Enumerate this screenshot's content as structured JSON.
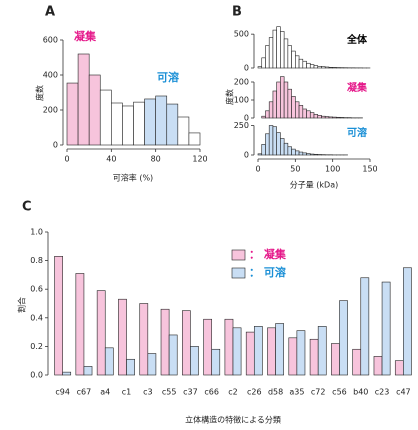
{
  "chart_data": [
    {
      "type": "histogram",
      "panel": "A",
      "xlabel": "可溶率 (%)",
      "ylabel": "度数",
      "bins": [
        0,
        10,
        20,
        30,
        40,
        50,
        60,
        70,
        80,
        90,
        100,
        110,
        120
      ],
      "values": [
        354,
        520,
        400,
        314,
        240,
        223,
        245,
        263,
        280,
        234,
        160,
        69
      ],
      "colors": [
        "#f7c4dc",
        "#f7c4dc",
        "#f7c4dc",
        "#ffffff",
        "#ffffff",
        "#ffffff",
        "#ffffff",
        "#c9def4",
        "#c9def4",
        "#c9def4",
        "#ffffff",
        "#ffffff"
      ],
      "xlim": [
        0,
        120
      ],
      "xticks": [
        0,
        40,
        80,
        120
      ],
      "ylim": [
        0,
        600
      ],
      "yticks": [
        0,
        200,
        400,
        600
      ],
      "annotations": [
        {
          "text": "凝集",
          "color": "#e5198a"
        },
        {
          "text": "可溶",
          "color": "#1a8fd6"
        }
      ]
    },
    {
      "type": "histogram",
      "panel": "B",
      "title": "全体",
      "title_color": "#000000",
      "color": "#ffffff",
      "bins": [
        0,
        5,
        10,
        15,
        20,
        25,
        30,
        35,
        40,
        45,
        50,
        55,
        60,
        65,
        70,
        75,
        80,
        85,
        90,
        95,
        100,
        105,
        110,
        115,
        120,
        125,
        130,
        135,
        140,
        145,
        150
      ],
      "values": [
        20,
        150,
        330,
        450,
        560,
        610,
        540,
        430,
        330,
        250,
        180,
        130,
        100,
        70,
        50,
        35,
        25,
        20,
        15,
        10,
        8,
        6,
        5,
        4,
        3,
        3,
        2,
        2,
        1,
        1
      ],
      "xlim": [
        0,
        150
      ],
      "ylim": [
        0,
        650
      ],
      "yticks": [
        0,
        500
      ]
    },
    {
      "type": "histogram",
      "title": "凝集",
      "title_color": "#e5198a",
      "color": "#f7c4dc",
      "ylabel": "度数",
      "bins": [
        0,
        5,
        10,
        15,
        20,
        25,
        30,
        35,
        40,
        45,
        50,
        55,
        60,
        65,
        70,
        75,
        80,
        85,
        90,
        95,
        100,
        105,
        110,
        115,
        120,
        125,
        130,
        135,
        140,
        145,
        150
      ],
      "values": [
        0,
        10,
        40,
        90,
        150,
        200,
        230,
        200,
        160,
        120,
        90,
        70,
        50,
        40,
        30,
        20,
        15,
        10,
        8,
        6,
        5,
        4,
        3,
        2,
        2,
        1,
        1,
        1,
        0,
        0
      ],
      "xlim": [
        0,
        150
      ],
      "ylim": [
        0,
        250
      ],
      "yticks": [
        0,
        100,
        200
      ]
    },
    {
      "type": "histogram",
      "title": "可溶",
      "title_color": "#1a8fd6",
      "color": "#c9def4",
      "xlabel": "分子量 (kDa)",
      "bins": [
        0,
        5,
        10,
        15,
        20,
        25,
        30,
        35,
        40,
        45,
        50,
        55,
        60,
        65,
        70,
        75,
        80,
        85,
        90,
        95,
        100,
        105,
        110,
        115,
        120,
        125,
        130,
        135,
        140,
        145,
        150
      ],
      "values": [
        10,
        90,
        180,
        250,
        240,
        190,
        140,
        100,
        70,
        50,
        35,
        25,
        18,
        12,
        8,
        6,
        4,
        3,
        2,
        2,
        1,
        1,
        1,
        1,
        0,
        0,
        0,
        0,
        0,
        0
      ],
      "xlim": [
        0,
        150
      ],
      "xticks": [
        0,
        50,
        100,
        150
      ],
      "ylim": [
        0,
        280
      ],
      "yticks": [
        0,
        250
      ]
    },
    {
      "type": "bar",
      "panel": "C",
      "xlabel": "立体構造の特徴による分類",
      "ylabel": "割合",
      "categories": [
        "c94",
        "c67",
        "a4",
        "c1",
        "c3",
        "c55",
        "c37",
        "c66",
        "c2",
        "c26",
        "d58",
        "a35",
        "c72",
        "c56",
        "b40",
        "c23",
        "c47"
      ],
      "series": [
        {
          "name": "： 凝集",
          "color": "#f7c4dc",
          "text_color": "#e5198a",
          "values": [
            0.83,
            0.71,
            0.59,
            0.53,
            0.5,
            0.46,
            0.45,
            0.39,
            0.39,
            0.3,
            0.33,
            0.26,
            0.25,
            0.22,
            0.18,
            0.13,
            0.1
          ]
        },
        {
          "name": "： 可溶",
          "color": "#c9def4",
          "text_color": "#1a8fd6",
          "values": [
            0.02,
            0.06,
            0.19,
            0.11,
            0.15,
            0.28,
            0.2,
            0.18,
            0.33,
            0.34,
            0.36,
            0.31,
            0.34,
            0.52,
            0.68,
            0.65,
            0.75
          ]
        }
      ],
      "ylim": [
        0,
        1
      ],
      "yticks": [
        {
          "value": 0,
          "label": "0.0"
        },
        {
          "value": 0.2,
          "label": "0.2"
        },
        {
          "value": 0.4,
          "label": "0.4"
        },
        {
          "value": 0.6,
          "label": "0.6"
        },
        {
          "value": 0.8,
          "label": "0.8"
        },
        {
          "value": 1,
          "label": "1.0"
        }
      ]
    }
  ]
}
